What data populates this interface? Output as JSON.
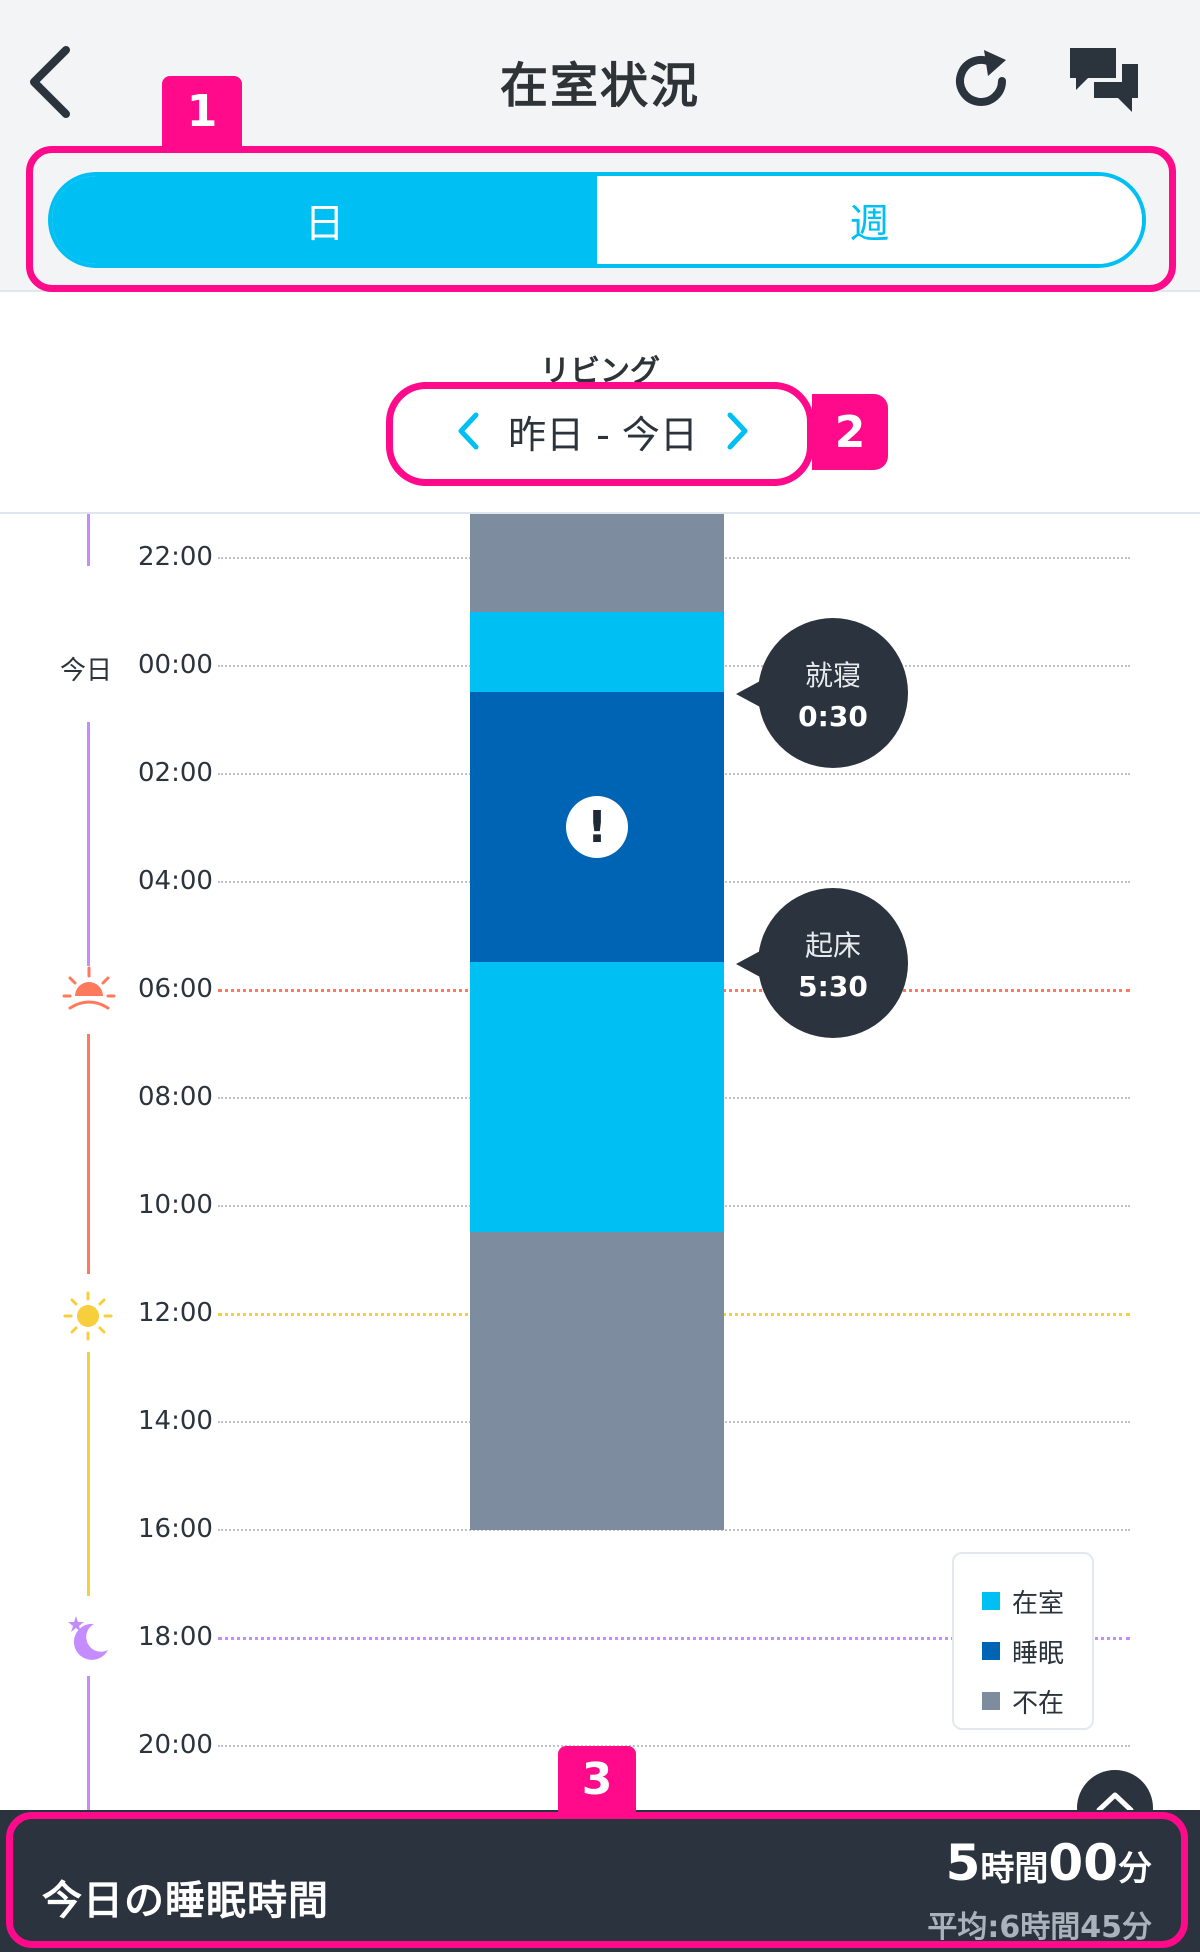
{
  "header": {
    "title": "在室状況",
    "back_icon": "chevron-left-icon",
    "refresh_icon": "refresh-icon",
    "chat_icon": "chat-bubbles-icon"
  },
  "period_toggle": {
    "options": [
      {
        "label": "日",
        "active": true
      },
      {
        "label": "週",
        "active": false
      }
    ]
  },
  "room": {
    "name": "リビング",
    "date_range": "昨日 - 今日"
  },
  "annotations": [
    "1",
    "2",
    "3"
  ],
  "timeline": {
    "day_marker": "今日",
    "time_labels": [
      "22:00",
      "00:00",
      "02:00",
      "04:00",
      "06:00",
      "08:00",
      "10:00",
      "12:00",
      "14:00",
      "16:00",
      "18:00",
      "20:00"
    ],
    "period_icons": [
      "sunrise-icon",
      "sun-icon",
      "moon-icon"
    ],
    "segments": [
      {
        "status": "不在",
        "start": "21:00",
        "end": "22:00"
      },
      {
        "status": "在室",
        "start": "22:00",
        "end": "00:30"
      },
      {
        "status": "睡眠",
        "start": "00:30",
        "end": "05:30"
      },
      {
        "status": "在室",
        "start": "05:30",
        "end": "10:30"
      },
      {
        "status": "不在",
        "start": "10:30",
        "end": "16:00"
      }
    ],
    "events": [
      {
        "label": "就寝",
        "time": "0:30"
      },
      {
        "label": "起床",
        "time": "5:30"
      }
    ],
    "alert_icon": "exclamation-icon"
  },
  "legend": {
    "items": [
      {
        "label": "在室",
        "color": "#00bff3"
      },
      {
        "label": "睡眠",
        "color": "#0064b4"
      },
      {
        "label": "不在",
        "color": "#7d8c9e"
      }
    ]
  },
  "footer": {
    "title": "今日の睡眠時間",
    "hours": "5",
    "hours_unit": "時間",
    "minutes": "00",
    "minutes_unit": "分",
    "average": "平均:6時間45分"
  }
}
